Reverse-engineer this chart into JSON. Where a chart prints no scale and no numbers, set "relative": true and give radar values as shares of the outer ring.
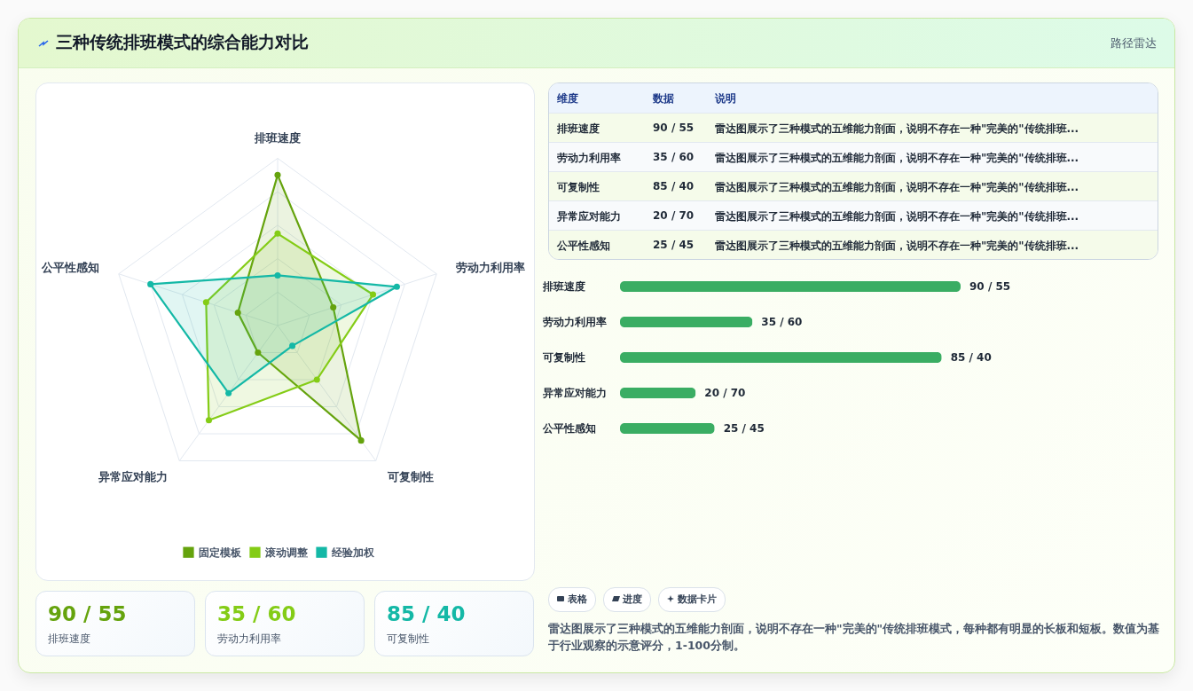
{
  "chart_data": [
    {
      "type": "other",
      "title": "三种传统排班模式的综合能力对比",
      "subtitle": "路径雷达"
    },
    {
      "type": "radar",
      "categories": [
        "排班速度",
        "劳动力利用率",
        "可复制性",
        "异常应对能力",
        "公平性感知"
      ],
      "relative": true,
      "grid": true,
      "marker": "circle",
      "legend": "bottom",
      "series": [
        {
          "name": "固定模板",
          "color": "#65a30d",
          "values": [
            0.9,
            0.35,
            0.85,
            0.2,
            0.25
          ]
        },
        {
          "name": "滚动调整",
          "color": "#84cc16",
          "values": [
            0.55,
            0.6,
            0.4,
            0.7,
            0.45
          ]
        },
        {
          "name": "经验加权",
          "color": "#14b8a6",
          "values": [
            0.3,
            0.75,
            0.15,
            0.5,
            0.8
          ]
        }
      ]
    },
    {
      "type": "other",
      "annotations": [
        "维度",
        "数据",
        "说明",
        "排班速度",
        "90 / 55",
        "雷达图展示了三种模式的五维能力剖面，说明不存在一种\"完美的\"传统排班...",
        "劳动力利用率",
        "35 / 60",
        "雷达图展示了三种模式的五维能力剖面，说明不存在一种\"完美的\"传统排班...",
        "可复制性",
        "85 / 40",
        "雷达图展示了三种模式的五维能力剖面，说明不存在一种\"完美的\"传统排班...",
        "异常应对能力",
        "20 / 70",
        "雷达图展示了三种模式的五维能力剖面，说明不存在一种\"完美的\"传统排班...",
        "公平性感知",
        "25 / 45",
        "雷达图展示了三种模式的五维能力剖面，说明不存在一种\"完美的\"传统排班..."
      ]
    },
    {
      "type": "bar",
      "orientation": "horizontal",
      "categories": [
        "排班速度",
        "劳动力利用率",
        "可复制性",
        "异常应对能力",
        "公平性感知"
      ],
      "values": [
        90,
        35,
        85,
        20,
        25
      ],
      "color": "#3aad63",
      "value_labels": [
        "90 / 55",
        "35 / 60",
        "85 / 40",
        "20 / 70",
        "25 / 45"
      ]
    },
    {
      "type": "other",
      "annotations": [
        "90 / 55",
        "排班速度",
        "35 / 60",
        "劳动力利用率",
        "85 / 40",
        "可复制性"
      ],
      "colors": [
        "#65a30d",
        "#84cc16",
        "#14b8a6"
      ]
    },
    {
      "type": "other",
      "annotations": [
        "表格",
        "进度",
        "数据卡片",
        "雷达图展示了三种模式的五维能力剖面，说明不存在一种\"完美的\"传统排班模式，每种都有明显的长板和短板。数值为基于行业观察的示意评分，1-100分制。"
      ]
    }
  ]
}
